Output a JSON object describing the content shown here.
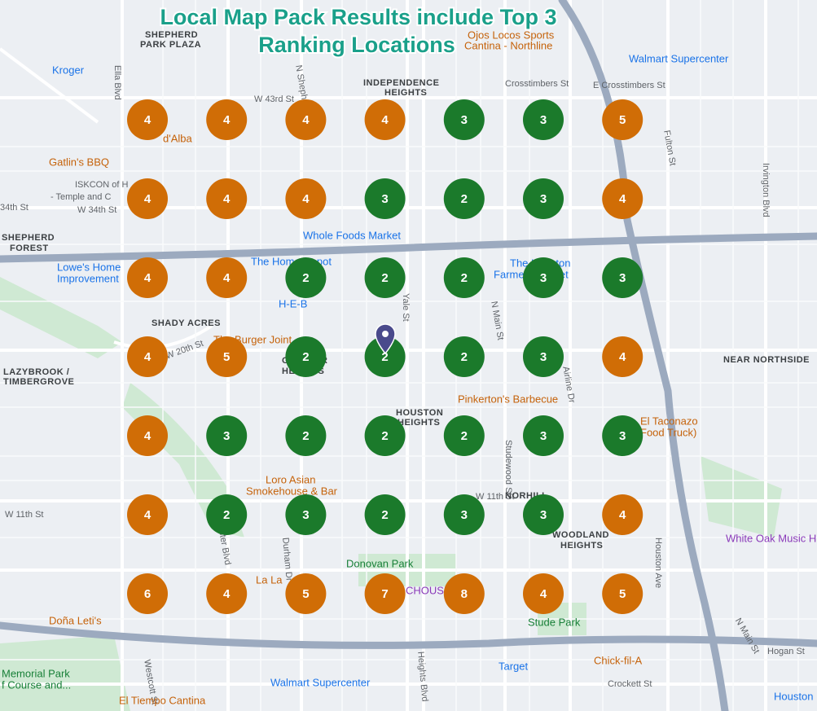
{
  "title_lines": [
    "Local Map Pack Results include Top 3",
    "Ranking Locations"
  ],
  "top_rank": 3,
  "colors": {
    "top": "#1b7a2b",
    "other": "#d06d06"
  },
  "grid": [
    [
      4,
      4,
      4,
      4,
      3,
      3,
      5
    ],
    [
      4,
      4,
      4,
      3,
      2,
      3,
      4
    ],
    [
      4,
      4,
      2,
      2,
      2,
      3,
      3
    ],
    [
      4,
      5,
      2,
      2,
      2,
      3,
      4
    ],
    [
      4,
      3,
      2,
      2,
      2,
      3,
      3
    ],
    [
      4,
      2,
      3,
      2,
      3,
      3,
      4
    ],
    [
      6,
      4,
      5,
      7,
      8,
      4,
      5
    ]
  ],
  "labels": [
    "SHEPHERD",
    "PARK PLAZA",
    "Kroger",
    "Ella Blvd",
    "INDEPENDENCE",
    "HEIGHTS",
    "Ojos Locos Sports",
    "Cantina - Northline",
    "Walmart Supercenter",
    "Crosstimbers St",
    "E Crosstimbers St",
    "W 43rd St",
    "d'Alba",
    "Gatlin's BBQ",
    "ISKCON of H",
    "- Temple and C",
    "34th St",
    "W 34th St",
    "SHEPHERD",
    "FOREST",
    "Whole Foods Market",
    "Lowe's Home",
    "Improvement",
    "The Home Depot",
    "H-E-B",
    "The Houston",
    "Farmers Market",
    "SHADY ACRES",
    "The Burger Joint",
    "GREATER",
    "HEIGHTS",
    "LAZYBROOK /",
    "TIMBERGROVE",
    "W 20th St",
    "NEAR NORTHSIDE",
    "Pinkerton's Barbecue",
    "HOUSTON",
    "HEIGHTS",
    "El Taconazo",
    "Food Truck)",
    "Loro Asian",
    "Smokehouse & Bar",
    "W 11th St",
    "W 11th St",
    "NORHILL",
    "WOODLAND",
    "HEIGHTS",
    "White Oak Music H",
    "Donovan Park",
    "La La",
    "CHOUSE",
    "Stude Park",
    "Doña Leti's",
    "Memorial Park",
    "f Course and...",
    "Westcott St",
    "Walmart Supercenter",
    "Target",
    "Chick-fil-A",
    "El Tiempo Cantina",
    "Crockett St",
    "Houston",
    "Yale St",
    "N Main St",
    "Studewood St",
    "Airline Dr",
    "Fulton St",
    "Irvington Blvd",
    "Houston Ave",
    "Heights Blvd",
    "Jester Blvd",
    "Durham Dr",
    "Hogan St",
    "N Main St",
    "N Shepherd Dr"
  ]
}
